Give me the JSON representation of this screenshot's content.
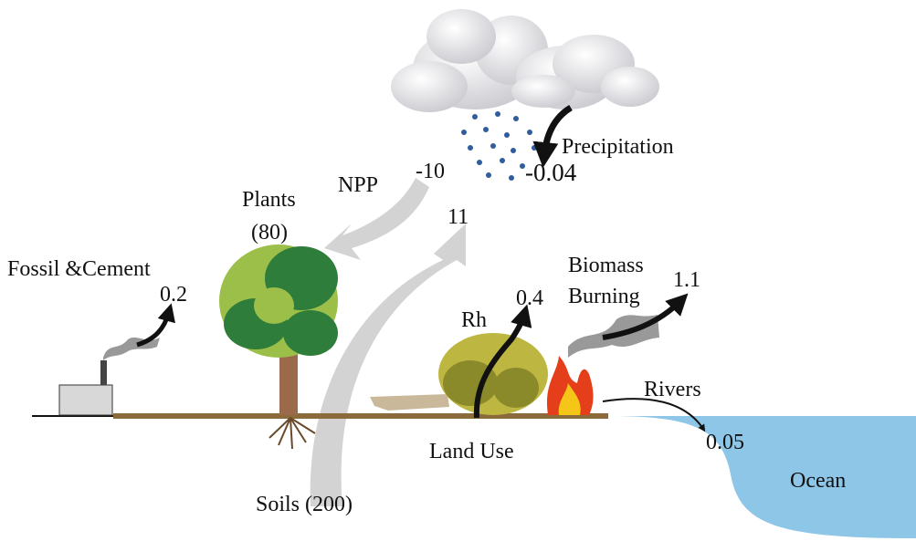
{
  "labels": {
    "precipitation": "Precipitation",
    "precipitation_left": "-10",
    "precipitation_right": "-0.04",
    "npp": "NPP",
    "soil_flux": "11",
    "plants": "Plants",
    "plants_stock": "(80)",
    "fossil": "Fossil &Cement",
    "fossil_flux": "0.2",
    "biomass_1": "Biomass",
    "biomass_2": "Burning",
    "biomass_flux": "1.1",
    "rh": "Rh",
    "rh_flux": "0.4",
    "rivers": "Rivers",
    "rivers_flux": "0.05",
    "land_use": "Land Use",
    "soils": "Soils (200)",
    "ocean": "Ocean"
  }
}
